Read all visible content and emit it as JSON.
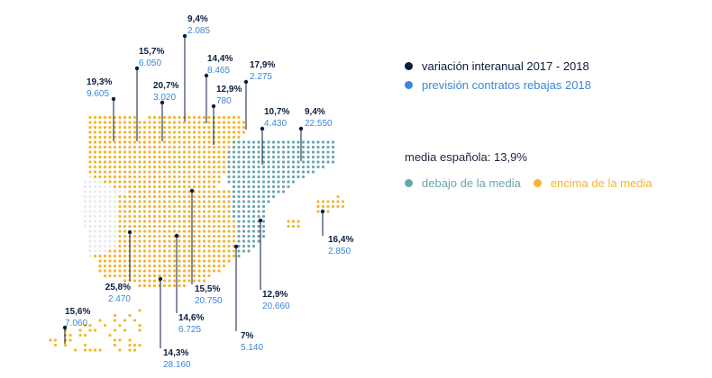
{
  "colors": {
    "navy": "#0c1c3c",
    "blue": "#3b86d8",
    "teal": "#6aa6ad",
    "yellow": "#f2b630",
    "pale": "#e8ecf2"
  },
  "legend": {
    "variacion": "variación interanual 2017 - 2018",
    "prevision": "previsión contratos rebajas 2018",
    "media": "media española: 13,9%",
    "debajo": "debajo de la media",
    "encima": "encima de la media"
  },
  "regions": {
    "galicia": {
      "pct": "19,3%",
      "count": "9.605"
    },
    "asturias": {
      "pct": "15,7%",
      "count": "6.050"
    },
    "cantabria": {
      "pct": "9,4%",
      "count": "2.085"
    },
    "castilla_leon": {
      "pct": "20,7%",
      "count": "3.020"
    },
    "pais_vasco": {
      "pct": "14,4%",
      "count": "8.465"
    },
    "la_rioja": {
      "pct": "12,9%",
      "count": "780"
    },
    "navarra": {
      "pct": "17,9%",
      "count": "2.275"
    },
    "aragon": {
      "pct": "10,7%",
      "count": "4.430"
    },
    "cataluna": {
      "pct": "9,4%",
      "count": "22.550"
    },
    "baleares": {
      "pct": "16,4%",
      "count": "2.850"
    },
    "extremadura": {
      "pct": "25,8%",
      "count": "2.470"
    },
    "madrid": {
      "pct": "15,5%",
      "count": "20.750"
    },
    "castilla_la_mancha": {
      "pct": "14,6%",
      "count": "6.725"
    },
    "valencia": {
      "pct": "12,9%",
      "count": "20.660"
    },
    "murcia": {
      "pct": "7%",
      "count": "5.140"
    },
    "andalucia": {
      "pct": "14,3%",
      "count": "28.160"
    },
    "canarias": {
      "pct": "15,6%",
      "count": "7.060"
    }
  }
}
